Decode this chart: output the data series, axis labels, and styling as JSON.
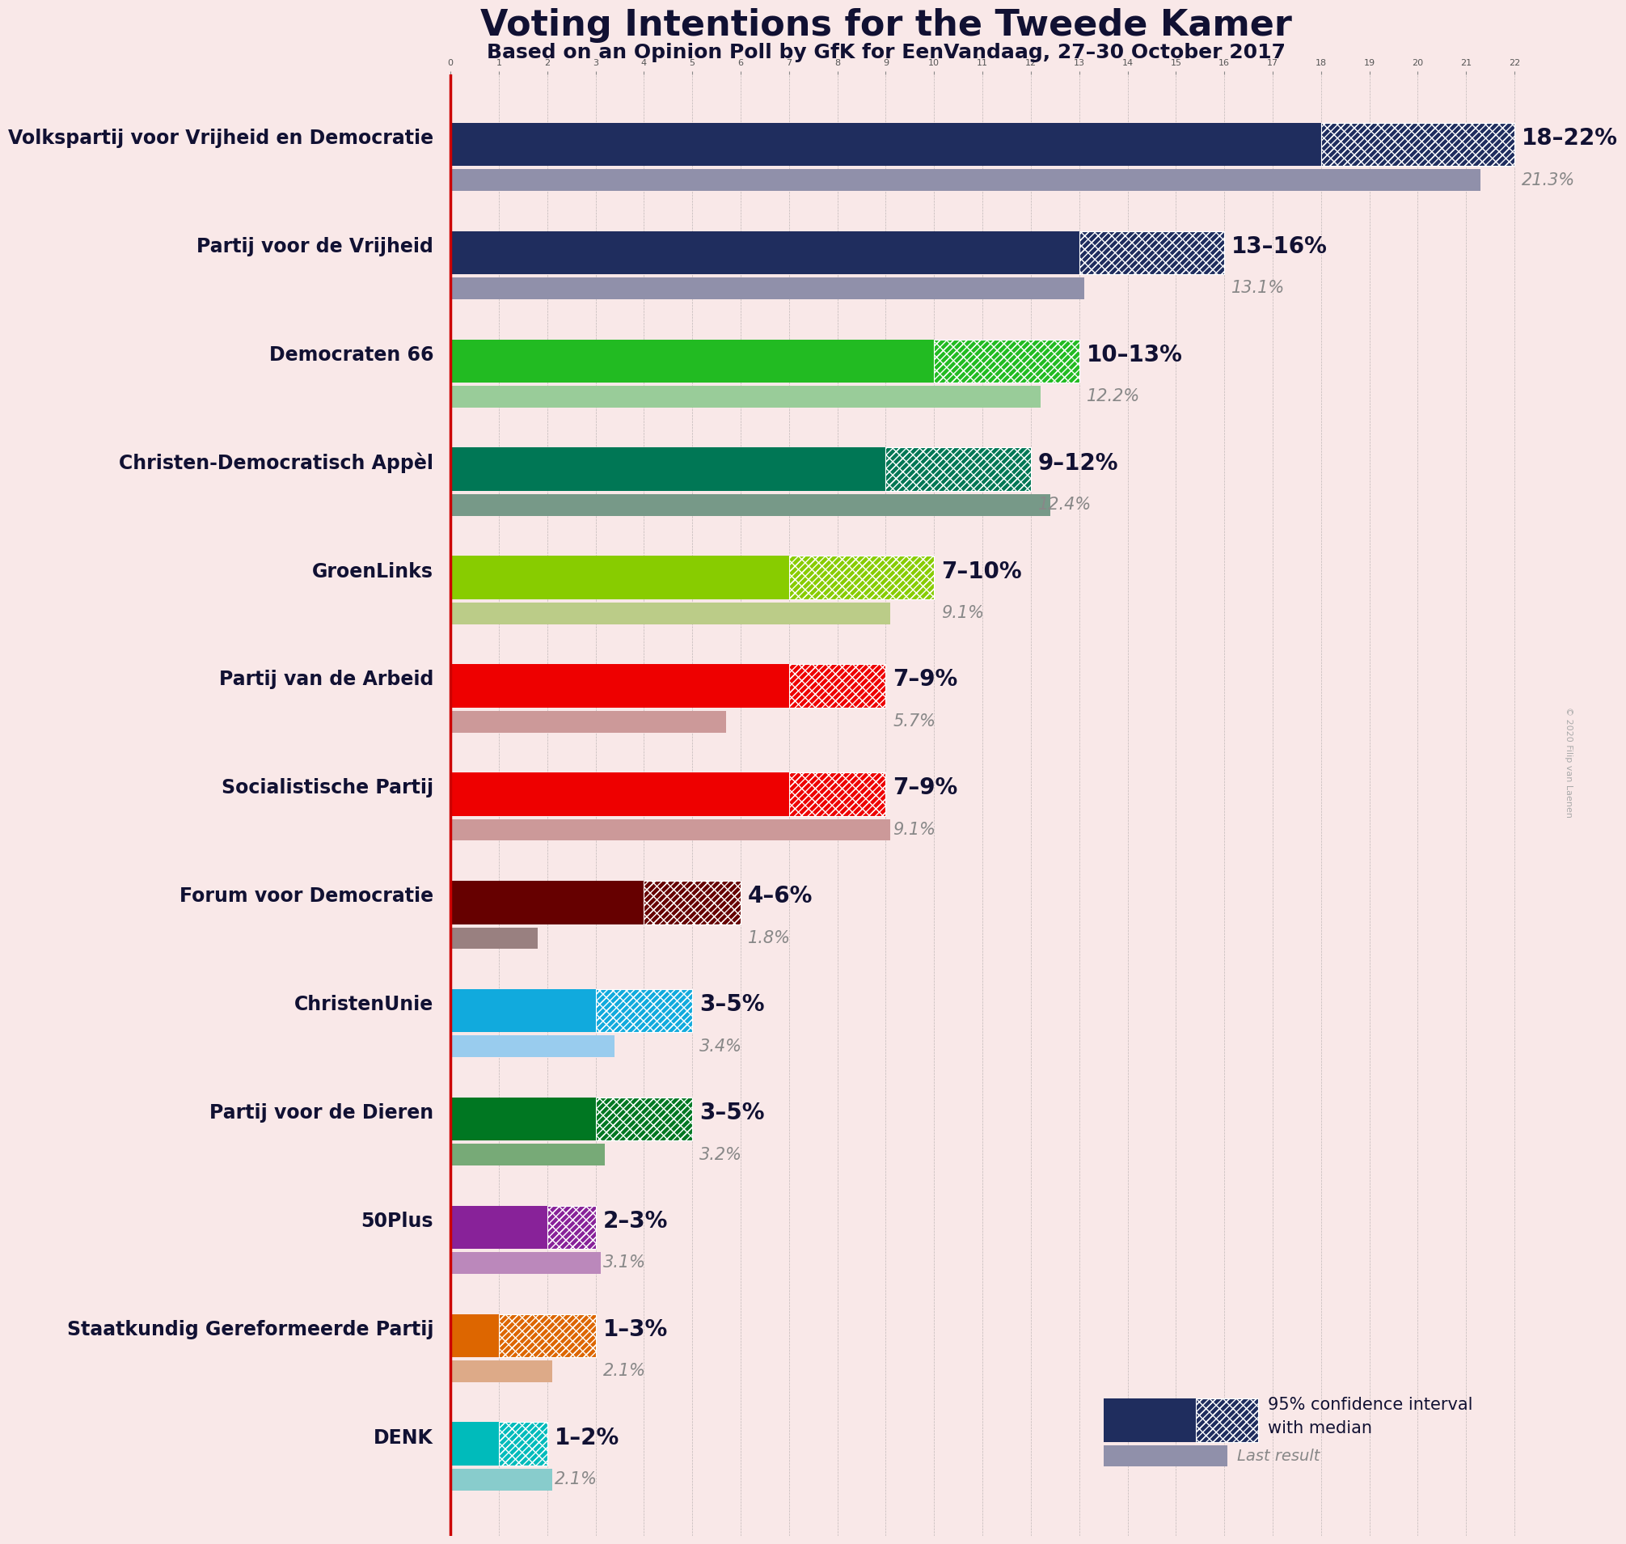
{
  "title": "Voting Intentions for the Tweede Kamer",
  "subtitle": "Based on an Opinion Poll by GfK for EenVandaag, 27–30 October 2017",
  "background_color": "#f9e8e8",
  "parties": [
    "Volkspartij voor Vrijheid en Democratie",
    "Partij voor de Vrijheid",
    "Democraten 66",
    "Christen-Democratisch Appèl",
    "GroenLinks",
    "Partij van de Arbeid",
    "Socialistische Partij",
    "Forum voor Democratie",
    "ChristenUnie",
    "Partij voor de Dieren",
    "50Plus",
    "Staatkundig Gereformeerde Partij",
    "DENK"
  ],
  "ci_low": [
    18,
    13,
    10,
    9,
    7,
    7,
    7,
    4,
    3,
    3,
    2,
    1,
    1
  ],
  "ci_high": [
    22,
    16,
    13,
    12,
    10,
    9,
    9,
    6,
    5,
    5,
    3,
    3,
    2
  ],
  "last_result": [
    21.3,
    13.1,
    12.2,
    12.4,
    9.1,
    5.7,
    9.1,
    1.8,
    3.4,
    3.2,
    3.1,
    2.1,
    2.1
  ],
  "labels": [
    "18–22%",
    "13–16%",
    "10–13%",
    "9–12%",
    "7–10%",
    "7–9%",
    "7–9%",
    "4–6%",
    "3–5%",
    "3–5%",
    "2–3%",
    "1–3%",
    "1–2%"
  ],
  "last_labels": [
    "21.3%",
    "13.1%",
    "12.2%",
    "12.4%",
    "9.1%",
    "5.7%",
    "9.1%",
    "1.8%",
    "3.4%",
    "3.2%",
    "3.1%",
    "2.1%",
    "2.1%"
  ],
  "colors": [
    "#1f2d5e",
    "#1f2d5e",
    "#22bb22",
    "#007755",
    "#88cc00",
    "#ee0000",
    "#ee0000",
    "#660000",
    "#11aadd",
    "#007722",
    "#882299",
    "#dd6600",
    "#00bbbb"
  ],
  "last_result_colors": [
    "#9090aa",
    "#9090aa",
    "#99cc99",
    "#779988",
    "#bbcc88",
    "#cc9999",
    "#cc9999",
    "#998080",
    "#99ccee",
    "#77aa77",
    "#bb88bb",
    "#ddaa88",
    "#88cccc"
  ],
  "xlim_max": 22,
  "label_fontsize": 18,
  "sublabel_fontsize": 14,
  "party_fontsize": 17,
  "range_fontsize": 20,
  "lastval_fontsize": 15,
  "copyright": "© 2020 Filip van Laenen"
}
